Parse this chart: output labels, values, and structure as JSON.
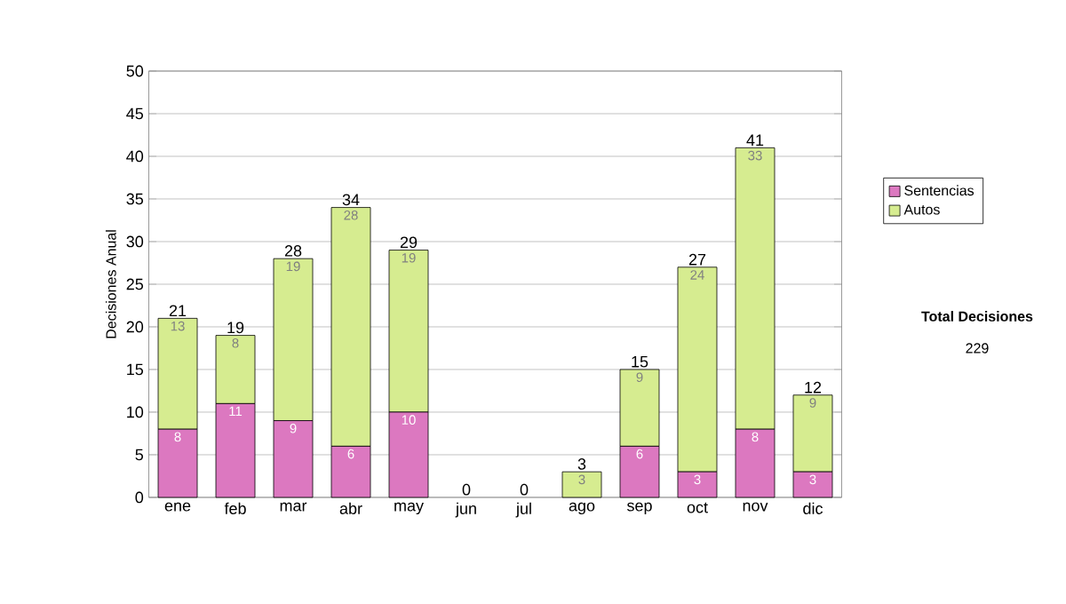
{
  "chart_data": {
    "type": "bar",
    "stacked": true,
    "ylabel": "Decisiones Anual",
    "categories": [
      "ene",
      "feb",
      "mar",
      "abr",
      "may",
      "jun",
      "jul",
      "ago",
      "sep",
      "oct",
      "nov",
      "dic"
    ],
    "series": [
      {
        "name": "Sentencias",
        "color": "#dc78c0",
        "values": [
          8,
          11,
          9,
          6,
          10,
          0,
          0,
          0,
          6,
          3,
          8,
          3
        ],
        "value_labels": [
          "8",
          "11",
          "9",
          "6",
          "10",
          null,
          null,
          null,
          "6",
          "3",
          "8",
          "3"
        ]
      },
      {
        "name": "Autos",
        "color": "#d6ec90",
        "values": [
          13,
          8,
          19,
          28,
          19,
          0,
          0,
          3,
          9,
          24,
          33,
          9
        ],
        "value_labels": [
          "13",
          "8",
          "19",
          "28",
          "19",
          null,
          null,
          "3",
          "9",
          "24",
          "33",
          "9"
        ]
      }
    ],
    "totals": [
      "21",
      "19",
      "28",
      "34",
      "29",
      "0",
      "0",
      "3",
      "15",
      "27",
      "41",
      "12"
    ],
    "ylim": [
      0,
      50
    ],
    "yticks": [
      0,
      5,
      10,
      15,
      20,
      25,
      30,
      35,
      40,
      45,
      50
    ],
    "grid": "y",
    "legend": "right",
    "annotations": [
      "**Total Decisiones**",
      "229"
    ]
  }
}
